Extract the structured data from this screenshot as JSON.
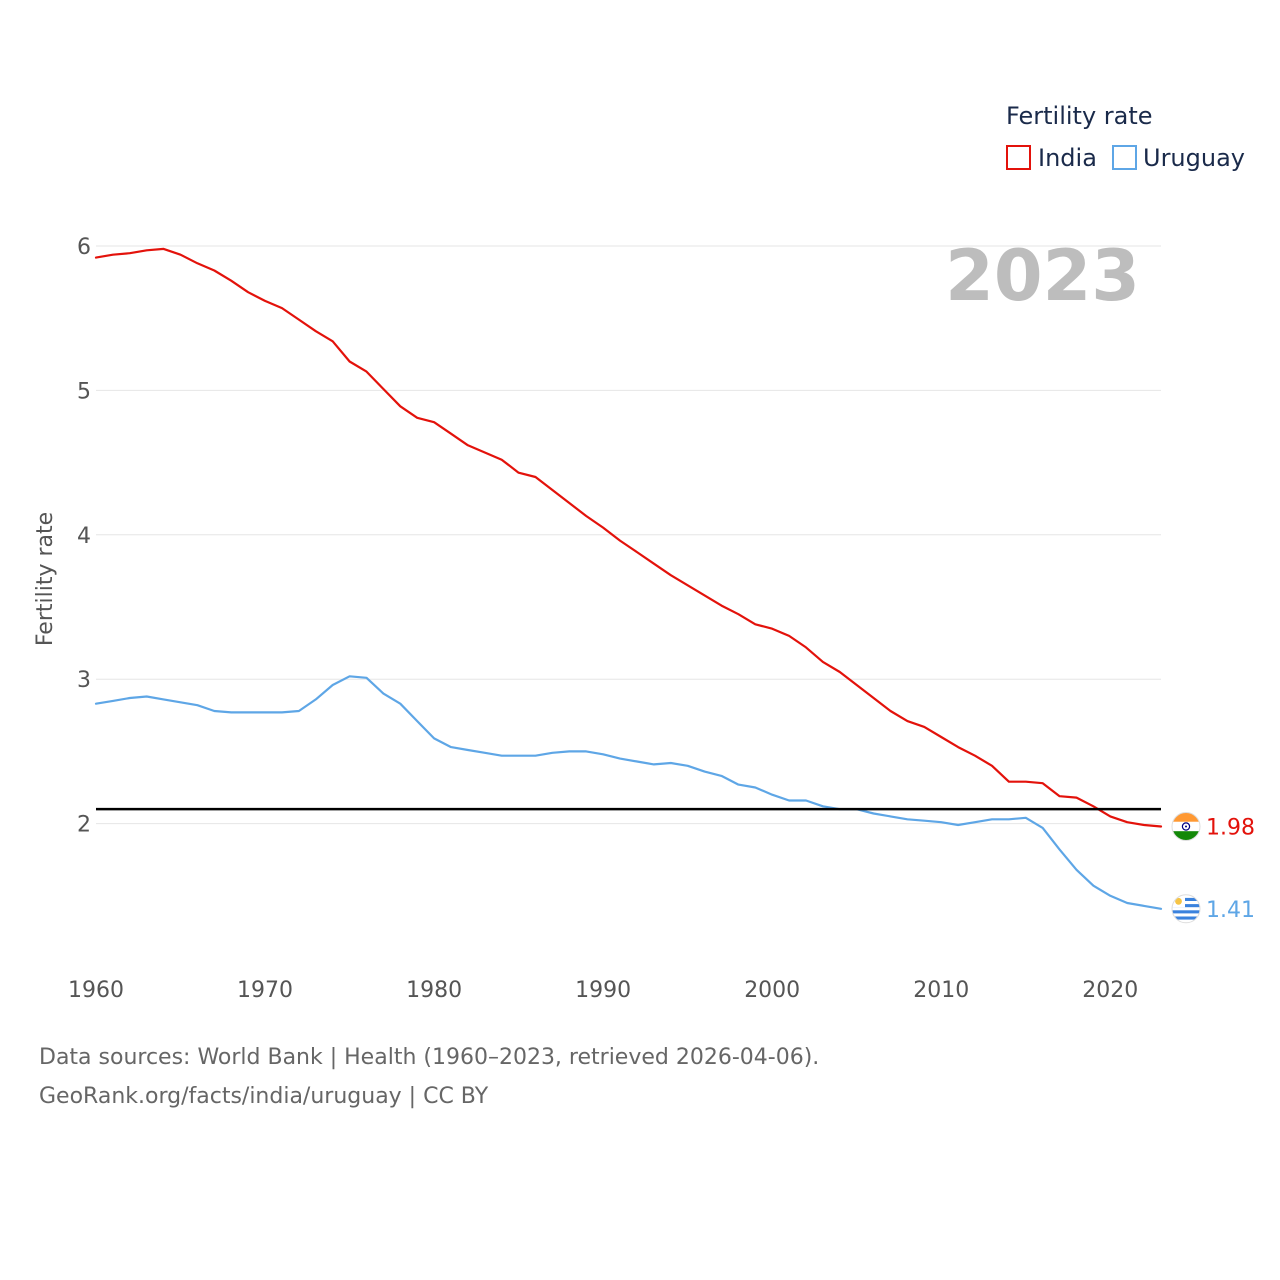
{
  "chart_data": {
    "type": "line",
    "year_label": "2023",
    "ylabel": "Fertility rate",
    "xlim": [
      1960,
      2023
    ],
    "ylim": [
      1.0,
      6.0
    ],
    "x_ticks": [
      "1960",
      "1970",
      "1980",
      "1990",
      "2000",
      "2010",
      "2020"
    ],
    "y_ticks": [
      "2",
      "3",
      "4",
      "5",
      "6"
    ],
    "reference_line": 2.1,
    "legend": {
      "title": "Fertility rate",
      "placement": "top-right",
      "items": [
        "India",
        "Uruguay"
      ]
    },
    "series": [
      {
        "name": "India",
        "color": "#e3120b",
        "end_label": "1.98",
        "flag": "india-flag-icon",
        "values": [
          5.92,
          5.94,
          5.95,
          5.97,
          5.98,
          5.94,
          5.88,
          5.83,
          5.76,
          5.68,
          5.62,
          5.57,
          5.49,
          5.41,
          5.34,
          5.2,
          5.13,
          5.01,
          4.89,
          4.81,
          4.78,
          4.7,
          4.62,
          4.57,
          4.52,
          4.43,
          4.4,
          4.31,
          4.22,
          4.13,
          4.05,
          3.96,
          3.88,
          3.8,
          3.72,
          3.65,
          3.58,
          3.51,
          3.45,
          3.38,
          3.35,
          3.3,
          3.22,
          3.12,
          3.05,
          2.96,
          2.87,
          2.78,
          2.71,
          2.67,
          2.6,
          2.53,
          2.47,
          2.4,
          2.29,
          2.29,
          2.28,
          2.19,
          2.18,
          2.12,
          2.05,
          2.01,
          1.99,
          1.98
        ]
      },
      {
        "name": "Uruguay",
        "color": "#5ea6e6",
        "end_label": "1.41",
        "flag": "uruguay-flag-icon",
        "values": [
          2.83,
          2.85,
          2.87,
          2.88,
          2.86,
          2.84,
          2.82,
          2.78,
          2.77,
          2.77,
          2.77,
          2.77,
          2.78,
          2.86,
          2.96,
          3.02,
          3.01,
          2.9,
          2.83,
          2.71,
          2.59,
          2.53,
          2.51,
          2.49,
          2.47,
          2.47,
          2.47,
          2.49,
          2.5,
          2.5,
          2.48,
          2.45,
          2.43,
          2.41,
          2.42,
          2.4,
          2.36,
          2.33,
          2.27,
          2.25,
          2.2,
          2.16,
          2.16,
          2.12,
          2.1,
          2.1,
          2.07,
          2.05,
          2.03,
          2.02,
          2.01,
          1.99,
          2.01,
          2.03,
          2.03,
          2.04,
          1.97,
          1.82,
          1.68,
          1.57,
          1.5,
          1.45,
          1.43,
          1.41
        ]
      }
    ]
  },
  "footer": {
    "source": "Data sources: World Bank | Health (1960–2023, retrieved 2026-04-06).",
    "url": "GeoRank.org/facts/india/uruguay | CC BY"
  }
}
